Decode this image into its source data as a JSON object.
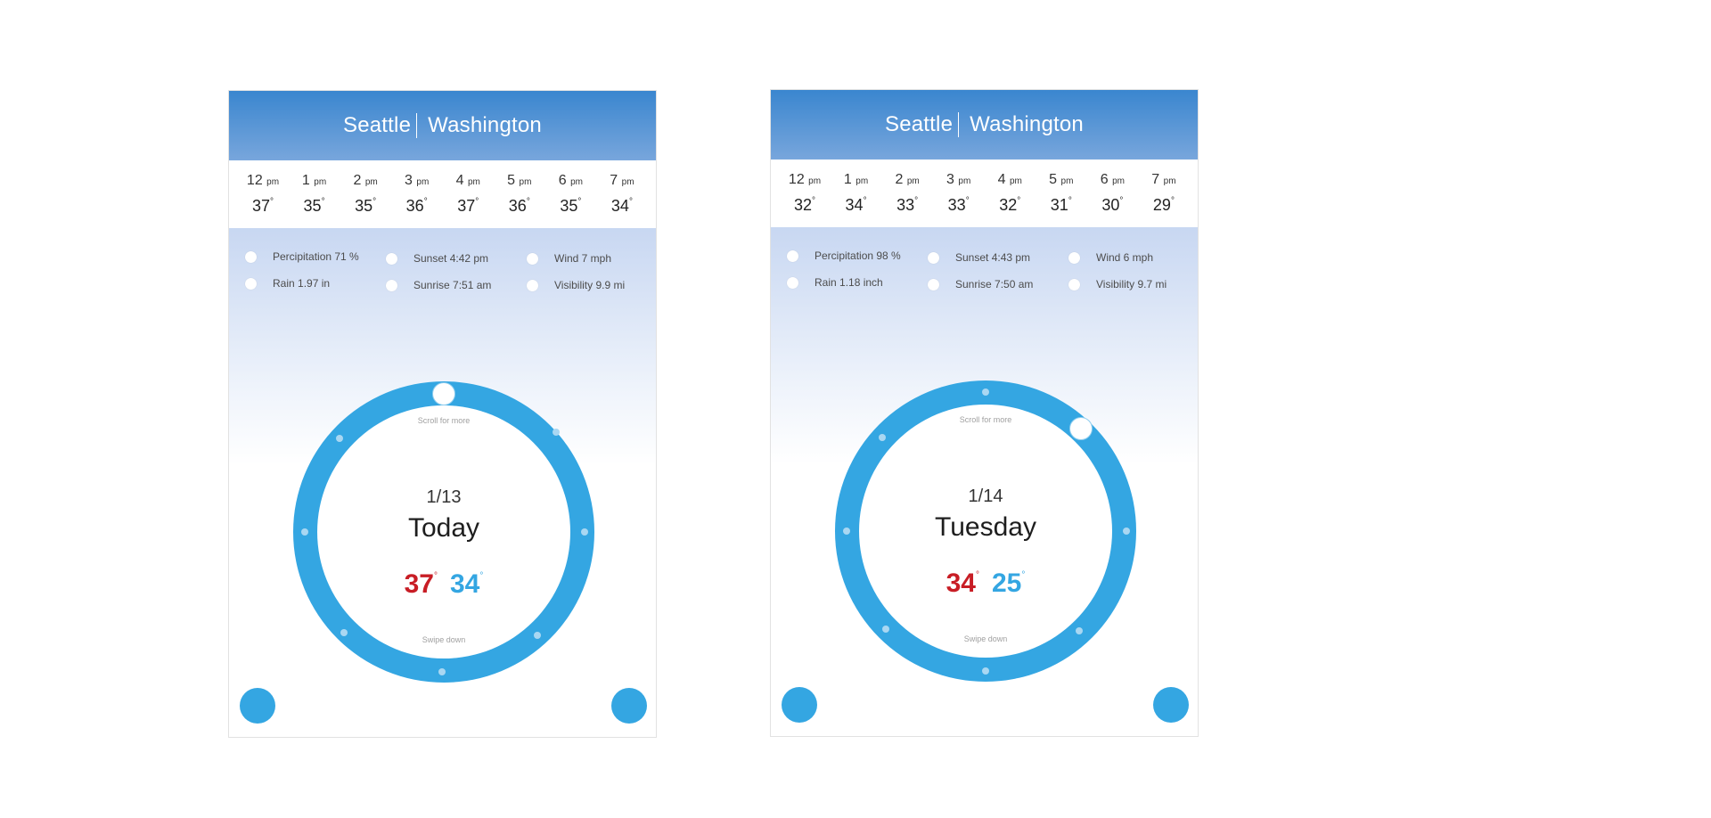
{
  "cards": [
    {
      "city": "Seattle",
      "state": "Washington",
      "hourly": [
        {
          "hour": "12",
          "suffix": "pm",
          "temp": "37",
          "deg": "°"
        },
        {
          "hour": "1",
          "suffix": "pm",
          "temp": "35",
          "deg": "°"
        },
        {
          "hour": "2",
          "suffix": "pm",
          "temp": "35",
          "deg": "°"
        },
        {
          "hour": "3",
          "suffix": "pm",
          "temp": "36",
          "deg": "°"
        },
        {
          "hour": "4",
          "suffix": "pm",
          "temp": "37",
          "deg": "°"
        },
        {
          "hour": "5",
          "suffix": "pm",
          "temp": "36",
          "deg": "°"
        },
        {
          "hour": "6",
          "suffix": "pm",
          "temp": "35",
          "deg": "°"
        },
        {
          "hour": "7",
          "suffix": "pm",
          "temp": "34",
          "deg": "°"
        }
      ],
      "details": {
        "precipitation": "Percipitation 71 %",
        "rain": "Rain 1.97 in",
        "sunset": "Sunset 4:42 pm",
        "sunrise": "Sunrise 7:51 am",
        "wind": "Wind 7 mph",
        "visibility": "Visibility 9.9 mi"
      },
      "dial": {
        "hint_top": "Scroll for more",
        "hint_bottom": "Swipe down",
        "date": "1/13",
        "day": "Today",
        "high": "37",
        "low": "34",
        "deg": "°"
      }
    },
    {
      "city": "Seattle",
      "state": "Washington",
      "hourly": [
        {
          "hour": "12",
          "suffix": "pm",
          "temp": "32",
          "deg": "°"
        },
        {
          "hour": "1",
          "suffix": "pm",
          "temp": "34",
          "deg": "°"
        },
        {
          "hour": "2",
          "suffix": "pm",
          "temp": "33",
          "deg": "°"
        },
        {
          "hour": "3",
          "suffix": "pm",
          "temp": "33",
          "deg": "°"
        },
        {
          "hour": "4",
          "suffix": "pm",
          "temp": "32",
          "deg": "°"
        },
        {
          "hour": "5",
          "suffix": "pm",
          "temp": "31",
          "deg": "°"
        },
        {
          "hour": "6",
          "suffix": "pm",
          "temp": "30",
          "deg": "°"
        },
        {
          "hour": "7",
          "suffix": "pm",
          "temp": "29",
          "deg": "°"
        }
      ],
      "details": {
        "precipitation": "Percipitation  98 %",
        "rain": "Rain 1.18 inch",
        "sunset": "Sunset 4:43 pm",
        "sunrise": "Sunrise 7:50 am",
        "wind": "Wind 6 mph",
        "visibility": "Visibility 9.7 mi"
      },
      "dial": {
        "hint_top": "Scroll for more",
        "hint_bottom": "Swipe down",
        "date": "1/14",
        "day": "Tuesday",
        "high": "34",
        "low": "25",
        "deg": "°"
      }
    }
  ],
  "colors": {
    "accent": "#34a6e2",
    "high_temp": "#c81d25",
    "header": "#3a86cf"
  }
}
